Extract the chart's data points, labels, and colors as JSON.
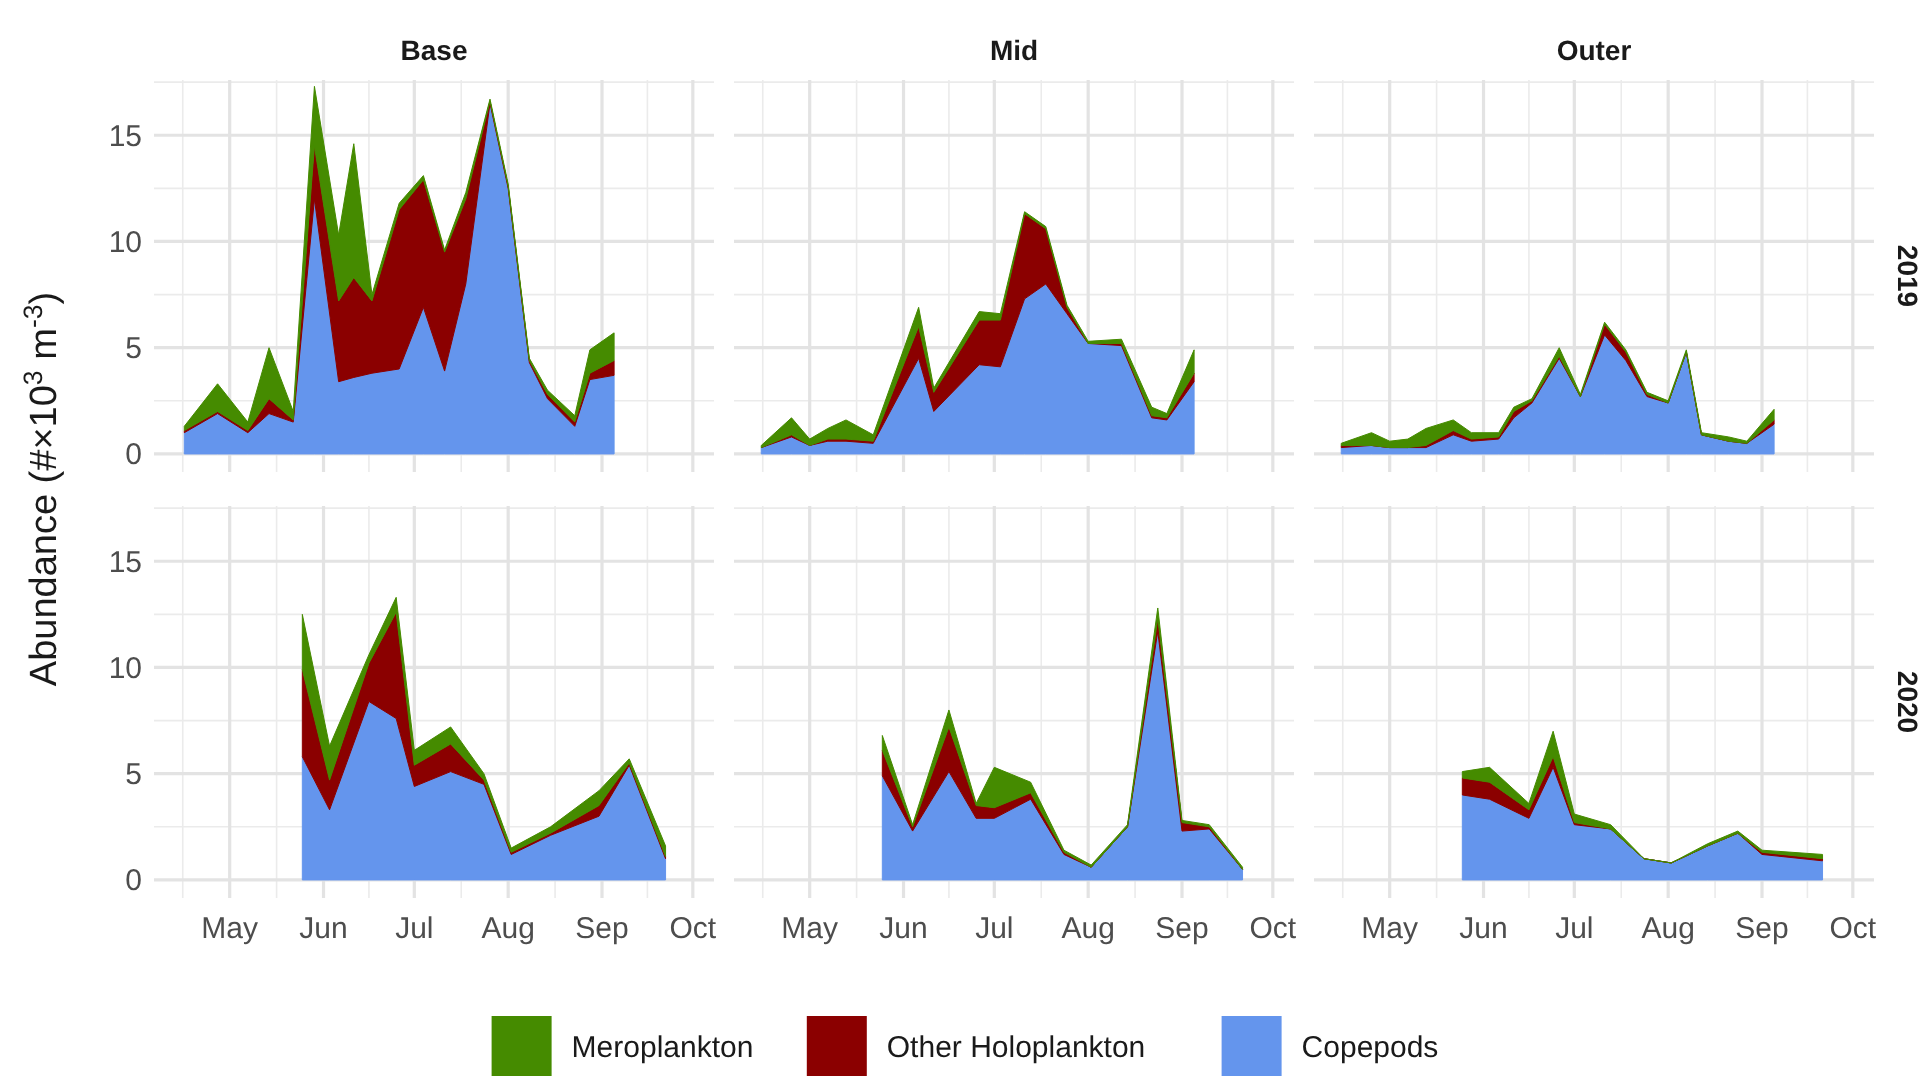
{
  "chart_data": [
    {
      "type": "area",
      "title": "Base",
      "ylabel": "Abundance (#×10$^{3}$ m$^{-3}$)",
      "stacked": true,
      "grid": true,
      "legend": "bottom",
      "tick_labels": "y",
      "xlim": [
        "--04-06",
        "--10-08"
      ],
      "xticks": [
        {
          "value": "--05-01",
          "label": null
        },
        {
          "value": "--06-01",
          "label": null
        },
        {
          "value": "--07-01",
          "label": null
        },
        {
          "value": "--08-01",
          "label": null
        },
        {
          "value": "--09-01",
          "label": null
        },
        {
          "value": "--10-01",
          "label": null
        }
      ],
      "ylim": [
        -0.85,
        17.6
      ],
      "yticks": [
        0,
        5,
        10,
        15
      ],
      "x": [
        "--04-16",
        "--04-27",
        "--05-07",
        "--05-14",
        "--05-22",
        "--05-29",
        "--06-06",
        "--06-11",
        "--06-17",
        "--06-26",
        "--07-04",
        "--07-11",
        "--07-18",
        "--07-26",
        "--08-01",
        "--08-08",
        "--08-14",
        "--08-23",
        "--08-28",
        "--09-05"
      ],
      "series": [
        {
          "name": "Copepods",
          "color": "#6495ed",
          "values": [
            1.0,
            1.9,
            1.0,
            1.9,
            1.5,
            12.0,
            3.4,
            3.6,
            3.8,
            4.0,
            6.9,
            3.9,
            8.0,
            16.5,
            12.5,
            4.3,
            2.6,
            1.3,
            3.5,
            3.7
          ]
        },
        {
          "name": "Other Holoplankton",
          "color": "#8b0000",
          "values": [
            0.1,
            0.1,
            0.1,
            0.7,
            0.1,
            2.5,
            3.8,
            4.7,
            3.4,
            7.5,
            6.0,
            5.6,
            4.0,
            0.1,
            0.1,
            0.1,
            0.2,
            0.2,
            0.3,
            0.7
          ]
        },
        {
          "name": "Meroplankton",
          "color": "#458b00",
          "values": [
            0.2,
            1.3,
            0.4,
            2.4,
            0.4,
            2.8,
            3.1,
            6.3,
            0.3,
            0.3,
            0.2,
            0.1,
            0.3,
            0.1,
            0.1,
            0.1,
            0.2,
            0.3,
            1.1,
            1.3
          ]
        }
      ]
    },
    {
      "type": "area",
      "title": "Mid",
      "stacked": true,
      "grid": true,
      "tick_labels": false,
      "xlim": [
        "--04-06",
        "--10-08"
      ],
      "xticks": [
        {
          "value": "--05-01",
          "label": null
        },
        {
          "value": "--06-01",
          "label": null
        },
        {
          "value": "--07-01",
          "label": null
        },
        {
          "value": "--08-01",
          "label": null
        },
        {
          "value": "--09-01",
          "label": null
        },
        {
          "value": "--10-01",
          "label": null
        }
      ],
      "ylim": [
        -0.85,
        17.6
      ],
      "yticks": [
        0,
        5,
        10,
        15
      ],
      "x": [
        "--04-15",
        "--04-25",
        "--05-01",
        "--05-07",
        "--05-13",
        "--05-22",
        "--06-06",
        "--06-11",
        "--06-26",
        "--07-03",
        "--07-11",
        "--07-18",
        "--07-25",
        "--08-01",
        "--08-12",
        "--08-22",
        "--08-27",
        "--09-05"
      ],
      "series": [
        {
          "color": "#6495ed",
          "values": [
            0.3,
            0.8,
            0.4,
            0.6,
            0.6,
            0.5,
            4.5,
            2.0,
            4.2,
            4.1,
            7.3,
            8.0,
            6.6,
            5.2,
            5.1,
            1.7,
            1.6,
            3.4
          ]
        },
        {
          "color": "#8b0000",
          "values": [
            0,
            0.1,
            0,
            0.1,
            0.1,
            0.1,
            1.5,
            0.9,
            2.1,
            2.2,
            4.0,
            2.6,
            0.3,
            0,
            0.1,
            0.1,
            0.1,
            0.4
          ]
        },
        {
          "color": "#458b00",
          "values": [
            0.1,
            0.8,
            0.3,
            0.5,
            0.9,
            0.3,
            0.9,
            0.2,
            0.4,
            0.3,
            0.1,
            0.1,
            0.1,
            0.1,
            0.2,
            0.4,
            0.2,
            1.1
          ]
        }
      ]
    },
    {
      "type": "area",
      "title": "Outer",
      "y2label": "2019",
      "stacked": true,
      "grid": true,
      "tick_labels": false,
      "xlim": [
        "--04-06",
        "--10-08"
      ],
      "xticks": [
        {
          "value": "--05-01",
          "label": null
        },
        {
          "value": "--06-01",
          "label": null
        },
        {
          "value": "--07-01",
          "label": null
        },
        {
          "value": "--08-01",
          "label": null
        },
        {
          "value": "--09-01",
          "label": null
        },
        {
          "value": "--10-01",
          "label": null
        }
      ],
      "ylim": [
        -0.85,
        17.6
      ],
      "yticks": [
        0,
        5,
        10,
        15
      ],
      "x": [
        "--04-15",
        "--04-25",
        "--05-01",
        "--05-07",
        "--05-13",
        "--05-22",
        "--05-28",
        "--06-06",
        "--06-11",
        "--06-17",
        "--06-26",
        "--07-03",
        "--07-11",
        "--07-18",
        "--07-25",
        "--08-01",
        "--08-07",
        "--08-12",
        "--08-21",
        "--08-27",
        "--09-05"
      ],
      "series": [
        {
          "color": "#6495ed",
          "values": [
            0.3,
            0.4,
            0.3,
            0.3,
            0.3,
            0.9,
            0.6,
            0.7,
            1.7,
            2.4,
            4.5,
            2.7,
            5.6,
            4.4,
            2.7,
            2.4,
            4.8,
            0.9,
            0.6,
            0.5,
            1.4
          ]
        },
        {
          "color": "#8b0000",
          "values": [
            0.1,
            0,
            0,
            0,
            0.1,
            0.2,
            0.1,
            0.1,
            0.3,
            0.1,
            0.1,
            0,
            0.5,
            0.4,
            0.1,
            0,
            0,
            0,
            0,
            0,
            0.2
          ]
        },
        {
          "color": "#458b00",
          "values": [
            0.1,
            0.6,
            0.3,
            0.4,
            0.8,
            0.5,
            0.3,
            0.2,
            0.2,
            0.1,
            0.4,
            0.1,
            0.1,
            0.1,
            0.1,
            0.1,
            0.1,
            0.1,
            0.2,
            0.1,
            0.5
          ]
        }
      ]
    },
    {
      "type": "area",
      "stacked": true,
      "grid": true,
      "xlim": [
        "--04-06",
        "--10-08"
      ],
      "xticks": [
        {
          "value": "--05-01",
          "label": "May"
        },
        {
          "value": "--06-01",
          "label": "Jun"
        },
        {
          "value": "--07-01",
          "label": "Jul"
        },
        {
          "value": "--08-01",
          "label": "Aug"
        },
        {
          "value": "--09-01",
          "label": "Sep"
        },
        {
          "value": "--10-01",
          "label": "Oct"
        }
      ],
      "ylim": [
        -0.85,
        17.6
      ],
      "yticks": [
        0,
        5,
        10,
        15
      ],
      "x": [
        "--05-25",
        "--06-03",
        "--06-16",
        "--06-25",
        "--07-01",
        "--07-13",
        "--07-24",
        "--08-02",
        "--08-15",
        "--08-31",
        "--09-10",
        "--09-22"
      ],
      "series": [
        {
          "color": "#6495ed",
          "values": [
            5.8,
            3.3,
            8.4,
            7.6,
            4.4,
            5.1,
            4.5,
            1.2,
            2.1,
            3.0,
            5.4,
            1.0
          ]
        },
        {
          "color": "#8b0000",
          "values": [
            4.1,
            1.4,
            1.8,
            5.0,
            1.0,
            1.3,
            0.2,
            0.1,
            0.1,
            0.5,
            0.1,
            0.1
          ]
        },
        {
          "color": "#458b00",
          "values": [
            2.6,
            1.6,
            0.4,
            0.7,
            0.7,
            0.8,
            0.3,
            0.2,
            0.3,
            0.7,
            0.2,
            0.5
          ]
        }
      ]
    },
    {
      "type": "area",
      "stacked": true,
      "grid": true,
      "tick_labels": "x",
      "xlim": [
        "--04-06",
        "--10-08"
      ],
      "xticks": [
        {
          "value": "--05-01",
          "label": "May"
        },
        {
          "value": "--06-01",
          "label": "Jun"
        },
        {
          "value": "--07-01",
          "label": "Jul"
        },
        {
          "value": "--08-01",
          "label": "Aug"
        },
        {
          "value": "--09-01",
          "label": "Sep"
        },
        {
          "value": "--10-01",
          "label": "Oct"
        }
      ],
      "ylim": [
        -0.85,
        17.6
      ],
      "yticks": [
        0,
        5,
        10,
        15
      ],
      "x": [
        "--05-25",
        "--06-04",
        "--06-16",
        "--06-25",
        "--07-01",
        "--07-13",
        "--07-24",
        "--08-02",
        "--08-14",
        "--08-24",
        "--09-01",
        "--09-10",
        "--09-21"
      ],
      "series": [
        {
          "color": "#6495ed",
          "values": [
            4.9,
            2.3,
            5.1,
            2.9,
            2.9,
            3.8,
            1.2,
            0.6,
            2.5,
            11.7,
            2.3,
            2.4,
            0.5
          ]
        },
        {
          "color": "#8b0000",
          "values": [
            1.2,
            0.2,
            2.1,
            0.6,
            0.5,
            0.3,
            0.1,
            0,
            0,
            0.6,
            0.4,
            0.1,
            0
          ]
        },
        {
          "color": "#458b00",
          "values": [
            0.7,
            0.1,
            0.8,
            0.1,
            1.9,
            0.5,
            0.1,
            0.1,
            0.1,
            0.5,
            0.1,
            0.1,
            0.1
          ]
        }
      ]
    },
    {
      "type": "area",
      "y2label": "2020",
      "stacked": true,
      "grid": true,
      "tick_labels": "x",
      "xlim": [
        "--04-06",
        "--10-08"
      ],
      "xticks": [
        {
          "value": "--05-01",
          "label": "May"
        },
        {
          "value": "--06-01",
          "label": "Jun"
        },
        {
          "value": "--07-01",
          "label": "Jul"
        },
        {
          "value": "--08-01",
          "label": "Aug"
        },
        {
          "value": "--09-01",
          "label": "Sep"
        },
        {
          "value": "--10-01",
          "label": "Oct"
        }
      ],
      "ylim": [
        -0.85,
        17.6
      ],
      "yticks": [
        0,
        5,
        10,
        15
      ],
      "x": [
        "--05-25",
        "--06-03",
        "--06-16",
        "--06-24",
        "--07-01",
        "--07-13",
        "--07-24",
        "--08-02",
        "--08-14",
        "--08-24",
        "--09-01",
        "--09-21"
      ],
      "series": [
        {
          "color": "#6495ed",
          "values": [
            4.0,
            3.8,
            2.9,
            5.3,
            2.6,
            2.4,
            1.0,
            0.8,
            1.6,
            2.2,
            1.2,
            0.9
          ]
        },
        {
          "color": "#8b0000",
          "values": [
            0.8,
            0.8,
            0.4,
            0.5,
            0.1,
            0,
            0,
            0,
            0,
            0,
            0.1,
            0.1
          ]
        },
        {
          "color": "#458b00",
          "values": [
            0.3,
            0.7,
            0.3,
            1.2,
            0.4,
            0.2,
            0,
            0,
            0.1,
            0.1,
            0.1,
            0.2
          ]
        }
      ]
    }
  ]
}
